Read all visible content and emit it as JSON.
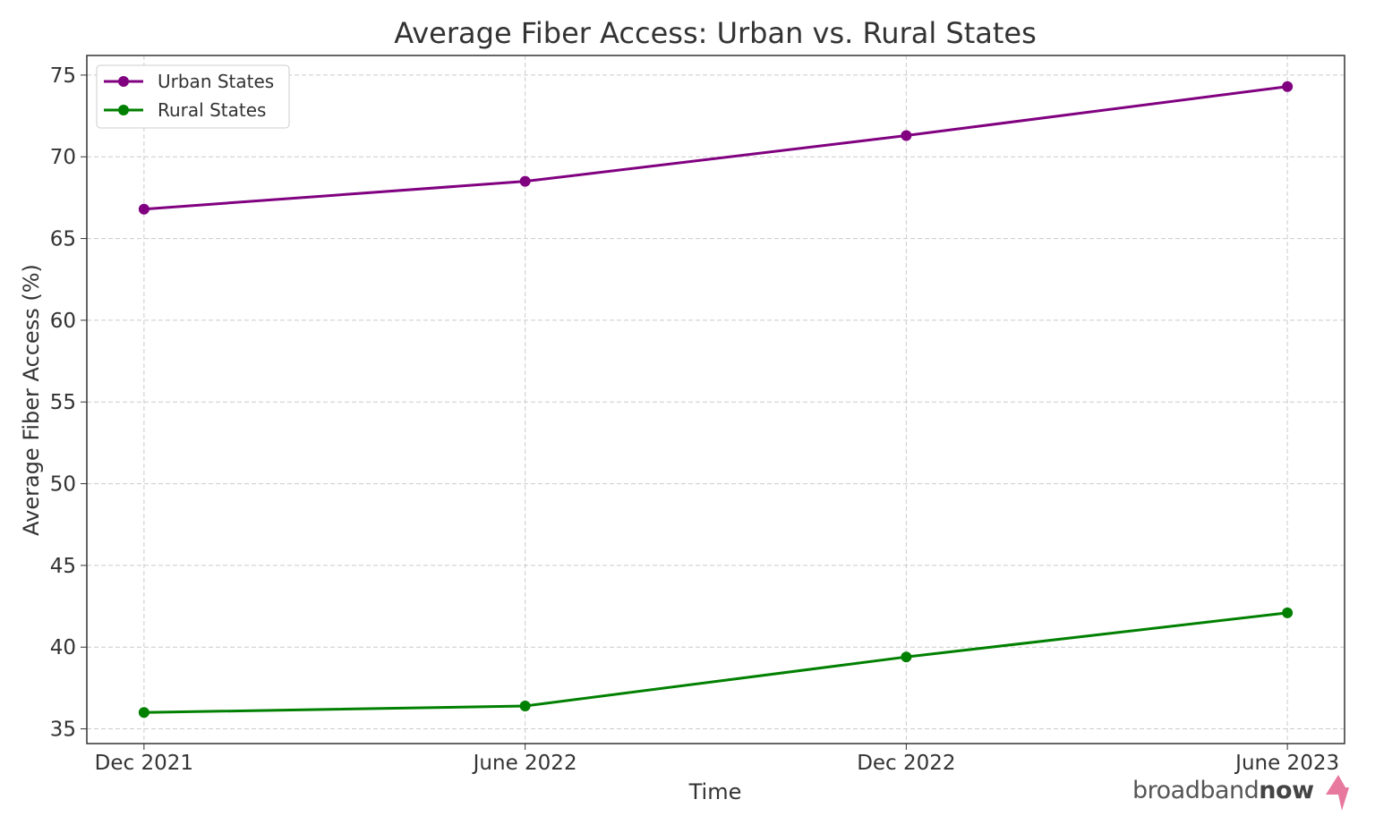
{
  "chart_data": {
    "type": "line",
    "title": "Average Fiber Access: Urban vs. Rural States",
    "xlabel": "Time",
    "ylabel": "Average Fiber Access (%)",
    "categories": [
      "Dec 2021",
      "June 2022",
      "Dec 2022",
      "June 2023"
    ],
    "ylim": [
      34.1,
      76.2
    ],
    "yticks": [
      35,
      40,
      45,
      50,
      55,
      60,
      65,
      70,
      75
    ],
    "grid": true,
    "grid_style": "dashed",
    "legend_position": "top-left",
    "series": [
      {
        "name": "Urban States",
        "color": "#800080",
        "values": [
          66.8,
          68.5,
          71.3,
          74.3
        ]
      },
      {
        "name": "Rural States",
        "color": "#008000",
        "values": [
          36.0,
          36.4,
          39.4,
          42.1
        ]
      }
    ]
  },
  "logo": {
    "text_light": "broadband",
    "text_bold": "now",
    "accent_color": "#e8799e"
  }
}
